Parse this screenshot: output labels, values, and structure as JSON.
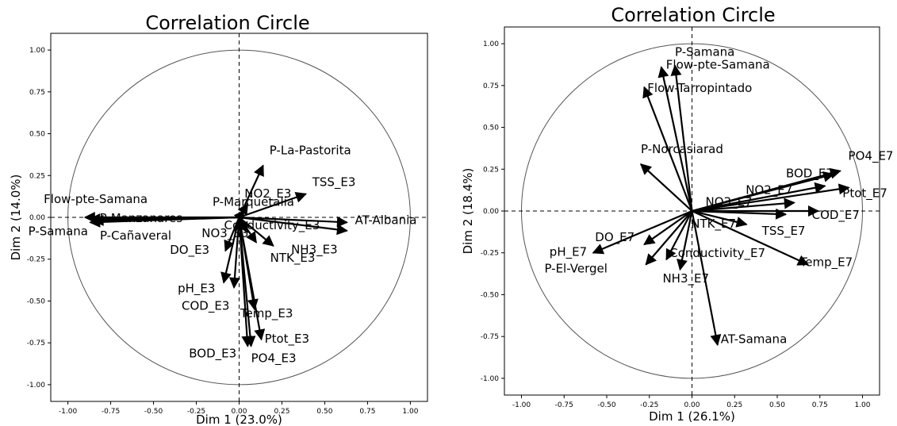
{
  "chart_data": [
    {
      "type": "scatter",
      "title": "Correlation Circle",
      "xlabel": "Dim 1 (23.0%)",
      "ylabel": "Dim 2 (14.0%)",
      "xlim": [
        -1.1,
        1.1
      ],
      "ylim": [
        -1.1,
        1.1
      ],
      "xticks": [
        "-1.00",
        "-0.75",
        "-0.50",
        "-0.25",
        "0.00",
        "0.25",
        "0.50",
        "0.75",
        "1.00"
      ],
      "yticks": [
        "1.00",
        "0.75",
        "0.50",
        "0.25",
        "0.00",
        "-0.25",
        "-0.50",
        "-0.75",
        "-1.00"
      ],
      "unit_circle": true,
      "vectors": [
        {
          "name": "P-La-Pastorita",
          "x": 0.14,
          "y": 0.31
        },
        {
          "name": "NO2_E3",
          "x": 0.05,
          "y": 0.08
        },
        {
          "name": "TSS_E3",
          "x": 0.39,
          "y": 0.14
        },
        {
          "name": "P-Marquetalia",
          "x": 0.03,
          "y": 0.04
        },
        {
          "name": "Flow-pte-Samana",
          "x": -0.9,
          "y": 0.0
        },
        {
          "name": "P-Manzanares",
          "x": -0.87,
          "y": -0.01
        },
        {
          "name": "P-Samana",
          "x": -0.87,
          "y": -0.03
        },
        {
          "name": "P-Cañaveral",
          "x": -0.85,
          "y": -0.02
        },
        {
          "name": "AT-Albania",
          "x": 0.63,
          "y": -0.03
        },
        {
          "name": "Conductivity_E3",
          "x": 0.63,
          "y": -0.08
        },
        {
          "name": "NO3_E3",
          "x": 0.05,
          "y": -0.09
        },
        {
          "name": "NTK_E3",
          "x": 0.2,
          "y": -0.17
        },
        {
          "name": "DO_E3",
          "x": -0.08,
          "y": -0.2
        },
        {
          "name": "NH3_E3",
          "x": 0.1,
          "y": -0.15
        },
        {
          "name": "pH_E3",
          "x": -0.09,
          "y": -0.39
        },
        {
          "name": "COD_E3",
          "x": -0.03,
          "y": -0.42
        },
        {
          "name": "Temp_E3",
          "x": 0.09,
          "y": -0.55
        },
        {
          "name": "Ptot_E3",
          "x": 0.13,
          "y": -0.73
        },
        {
          "name": "BOD_E3",
          "x": 0.05,
          "y": -0.77
        },
        {
          "name": "PO4_E3",
          "x": 0.07,
          "y": -0.77
        }
      ]
    },
    {
      "type": "scatter",
      "title": "Correlation Circle",
      "xlabel": "Dim 1 (26.1%)",
      "ylabel": "Dim 2 (18.4%)",
      "xlim": [
        -1.1,
        1.1
      ],
      "ylim": [
        -1.1,
        1.1
      ],
      "xticks": [
        "-1.00",
        "-0.75",
        "-0.50",
        "-0.25",
        "0.00",
        "0.25",
        "0.50",
        "0.75",
        "1.00"
      ],
      "yticks": [
        "1.00",
        "0.75",
        "0.50",
        "0.25",
        "0.00",
        "-0.25",
        "-0.50",
        "-0.75",
        "-1.00"
      ],
      "unit_circle": true,
      "vectors": [
        {
          "name": "P-Samana",
          "x": -0.1,
          "y": 0.87
        },
        {
          "name": "Flow-pte-Samana",
          "x": -0.18,
          "y": 0.86
        },
        {
          "name": "Flow-Tarropintado",
          "x": -0.28,
          "y": 0.74
        },
        {
          "name": "P-Norcasiarad",
          "x": -0.3,
          "y": 0.28
        },
        {
          "name": "PO4_E7",
          "x": 0.87,
          "y": 0.24
        },
        {
          "name": "BOD_E7",
          "x": 0.83,
          "y": 0.22
        },
        {
          "name": "Ptot_E7",
          "x": 0.92,
          "y": 0.14
        },
        {
          "name": "NO2_E7",
          "x": 0.78,
          "y": 0.15
        },
        {
          "name": "NO3_E7",
          "x": 0.6,
          "y": 0.05
        },
        {
          "name": "COD_E7",
          "x": 0.74,
          "y": 0.0
        },
        {
          "name": "TSS_E7",
          "x": 0.55,
          "y": -0.02
        },
        {
          "name": "NTK_E7",
          "x": 0.32,
          "y": -0.08
        },
        {
          "name": "Temp_E7",
          "x": 0.68,
          "y": -0.32
        },
        {
          "name": "pH_E7",
          "x": -0.58,
          "y": -0.25
        },
        {
          "name": "DO_E7",
          "x": -0.28,
          "y": -0.2
        },
        {
          "name": "P-El-Vergel",
          "x": -0.27,
          "y": -0.32
        },
        {
          "name": "Conductivity_E7",
          "x": -0.15,
          "y": -0.29
        },
        {
          "name": "NH3_E7",
          "x": -0.07,
          "y": -0.35
        },
        {
          "name": "AT-Samana",
          "x": 0.15,
          "y": -0.8
        }
      ]
    }
  ]
}
